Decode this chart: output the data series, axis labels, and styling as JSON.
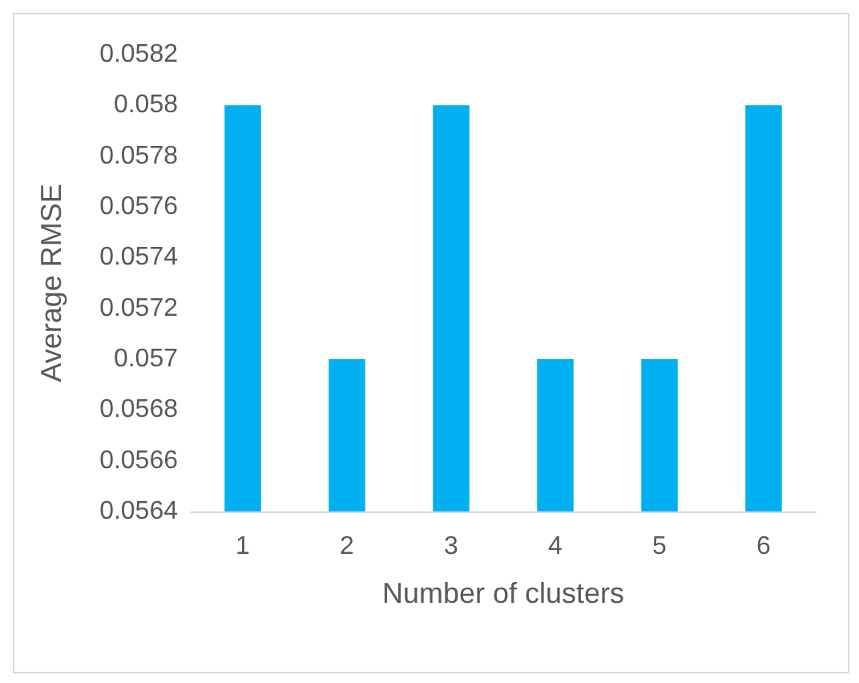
{
  "chart_data": {
    "type": "bar",
    "xlabel": "Number of clusters",
    "ylabel": "Average RMSE",
    "categories": [
      "1",
      "2",
      "3",
      "4",
      "5",
      "6"
    ],
    "values": [
      0.058,
      0.057,
      0.058,
      0.057,
      0.057,
      0.058
    ],
    "color": "#00b0f0",
    "ylim": [
      0.0564,
      0.0582
    ],
    "yticks": [
      0.0564,
      0.0566,
      0.0568,
      0.057,
      0.0572,
      0.0574,
      0.0576,
      0.0578,
      0.058,
      0.0582
    ],
    "grid": false
  }
}
